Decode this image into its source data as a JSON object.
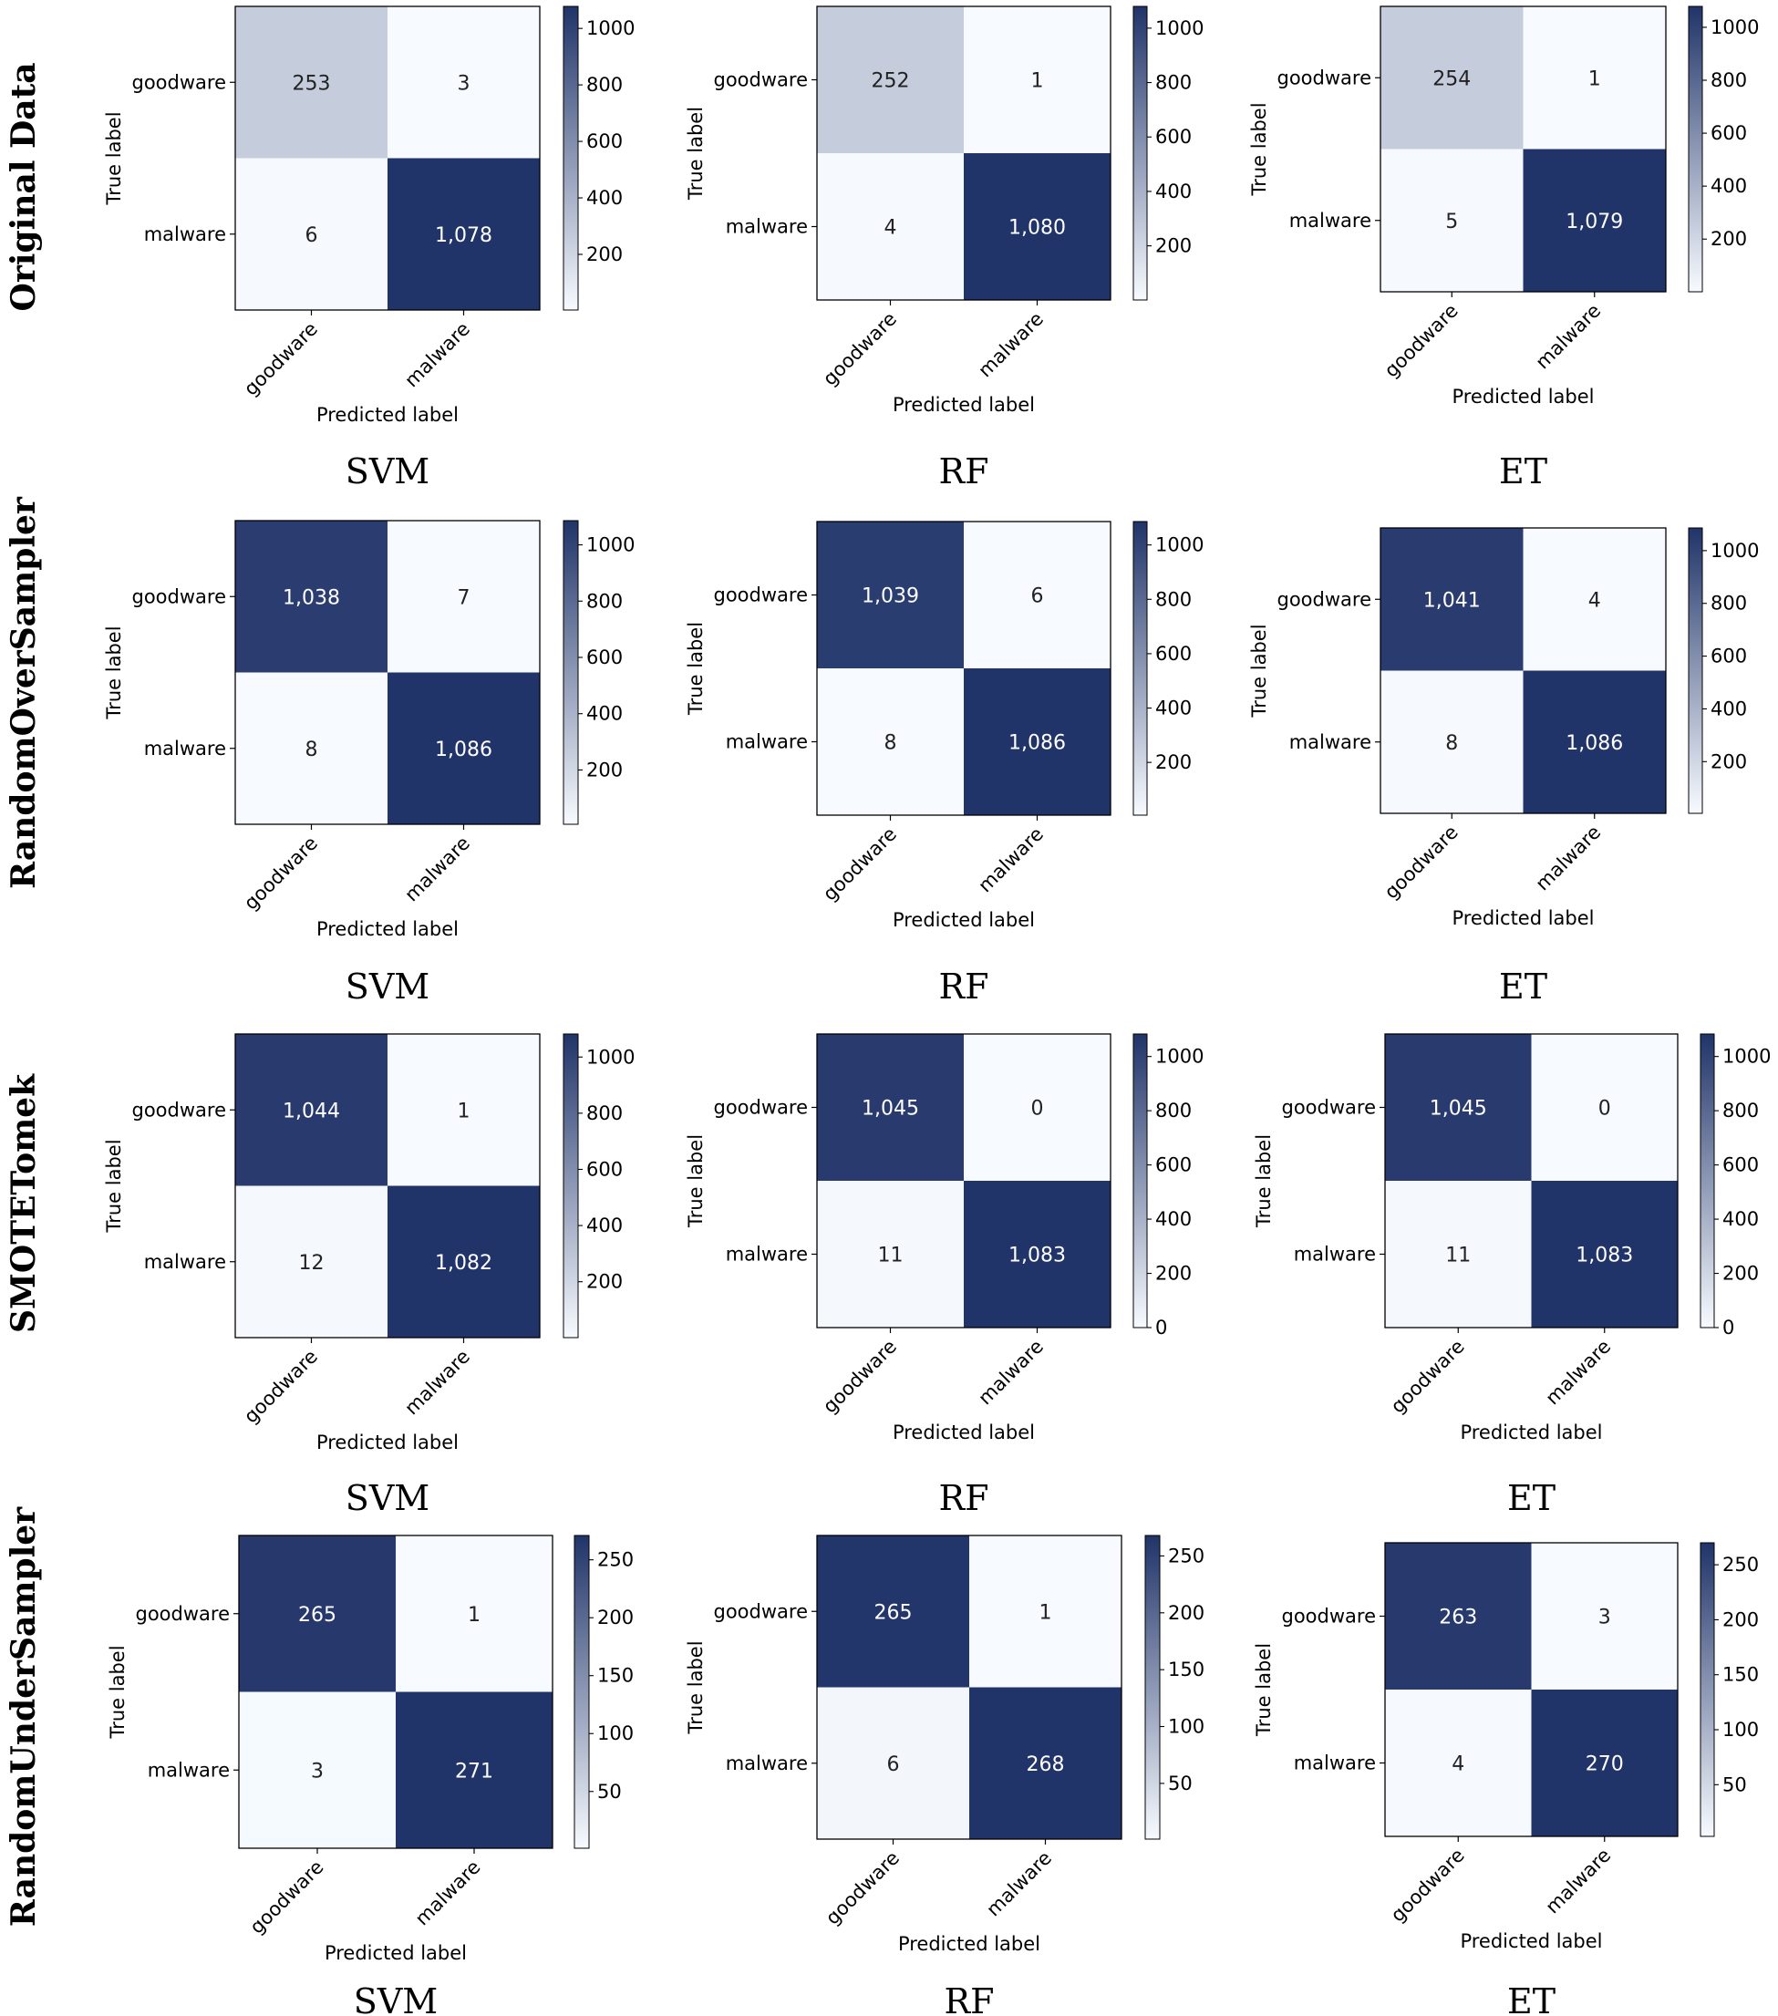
{
  "figure": {
    "row_labels": [
      "Original Data",
      "RandomOverSampler",
      "SMOTETomek",
      "RandomUnderSampler"
    ],
    "colors": {
      "low": "#f7fbff",
      "high": "#213469",
      "text_light": "#ffffff",
      "text_dark": "#222222"
    }
  },
  "chart_data": [
    {
      "type": "heatmap",
      "row_label": "Original Data",
      "title": "SVM",
      "xlabel": "Predicted label",
      "ylabel": "True label",
      "x_categories": [
        "goodware",
        "malware"
      ],
      "y_categories": [
        "goodware",
        "malware"
      ],
      "matrix": [
        [
          253,
          3
        ],
        [
          6,
          1078
        ]
      ],
      "cell_labels": [
        [
          "253",
          "3"
        ],
        [
          "6",
          "1,078"
        ]
      ],
      "colorbar": {
        "min": 3,
        "max": 1078,
        "ticks": [
          200,
          400,
          600,
          800,
          1000
        ]
      }
    },
    {
      "type": "heatmap",
      "row_label": "Original Data",
      "title": "RF",
      "xlabel": "Predicted label",
      "ylabel": "True label",
      "x_categories": [
        "goodware",
        "malware"
      ],
      "y_categories": [
        "goodware",
        "malware"
      ],
      "matrix": [
        [
          252,
          1
        ],
        [
          4,
          1080
        ]
      ],
      "cell_labels": [
        [
          "252",
          "1"
        ],
        [
          "4",
          "1,080"
        ]
      ],
      "colorbar": {
        "min": 1,
        "max": 1080,
        "ticks": [
          200,
          400,
          600,
          800,
          1000
        ]
      }
    },
    {
      "type": "heatmap",
      "row_label": "Original Data",
      "title": "ET",
      "xlabel": "Predicted label",
      "ylabel": "True label",
      "x_categories": [
        "goodware",
        "malware"
      ],
      "y_categories": [
        "goodware",
        "malware"
      ],
      "matrix": [
        [
          254,
          1
        ],
        [
          5,
          1079
        ]
      ],
      "cell_labels": [
        [
          "254",
          "1"
        ],
        [
          "5",
          "1,079"
        ]
      ],
      "colorbar": {
        "min": 1,
        "max": 1079,
        "ticks": [
          200,
          400,
          600,
          800,
          1000
        ]
      }
    },
    {
      "type": "heatmap",
      "row_label": "RandomOverSampler",
      "title": "SVM",
      "xlabel": "Predicted label",
      "ylabel": "True label",
      "x_categories": [
        "goodware",
        "malware"
      ],
      "y_categories": [
        "goodware",
        "malware"
      ],
      "matrix": [
        [
          1038,
          7
        ],
        [
          8,
          1086
        ]
      ],
      "cell_labels": [
        [
          "1,038",
          "7"
        ],
        [
          "8",
          "1,086"
        ]
      ],
      "colorbar": {
        "min": 7,
        "max": 1086,
        "ticks": [
          200,
          400,
          600,
          800,
          1000
        ]
      }
    },
    {
      "type": "heatmap",
      "row_label": "RandomOverSampler",
      "title": "RF",
      "xlabel": "Predicted label",
      "ylabel": "True label",
      "x_categories": [
        "goodware",
        "malware"
      ],
      "y_categories": [
        "goodware",
        "malware"
      ],
      "matrix": [
        [
          1039,
          6
        ],
        [
          8,
          1086
        ]
      ],
      "cell_labels": [
        [
          "1,039",
          "6"
        ],
        [
          "8",
          "1,086"
        ]
      ],
      "colorbar": {
        "min": 6,
        "max": 1086,
        "ticks": [
          200,
          400,
          600,
          800,
          1000
        ]
      }
    },
    {
      "type": "heatmap",
      "row_label": "RandomOverSampler",
      "title": "ET",
      "xlabel": "Predicted label",
      "ylabel": "True label",
      "x_categories": [
        "goodware",
        "malware"
      ],
      "y_categories": [
        "goodware",
        "malware"
      ],
      "matrix": [
        [
          1041,
          4
        ],
        [
          8,
          1086
        ]
      ],
      "cell_labels": [
        [
          "1,041",
          "4"
        ],
        [
          "8",
          "1,086"
        ]
      ],
      "colorbar": {
        "min": 4,
        "max": 1086,
        "ticks": [
          200,
          400,
          600,
          800,
          1000
        ]
      }
    },
    {
      "type": "heatmap",
      "row_label": "SMOTETomek",
      "title": "SVM",
      "xlabel": "Predicted label",
      "ylabel": "True label",
      "x_categories": [
        "goodware",
        "malware"
      ],
      "y_categories": [
        "goodware",
        "malware"
      ],
      "matrix": [
        [
          1044,
          1
        ],
        [
          12,
          1082
        ]
      ],
      "cell_labels": [
        [
          "1,044",
          "1"
        ],
        [
          "12",
          "1,082"
        ]
      ],
      "colorbar": {
        "min": 1,
        "max": 1082,
        "ticks": [
          200,
          400,
          600,
          800,
          1000
        ]
      }
    },
    {
      "type": "heatmap",
      "row_label": "SMOTETomek",
      "title": "RF",
      "xlabel": "Predicted label",
      "ylabel": "True label",
      "x_categories": [
        "goodware",
        "malware"
      ],
      "y_categories": [
        "goodware",
        "malware"
      ],
      "matrix": [
        [
          1045,
          0
        ],
        [
          11,
          1083
        ]
      ],
      "cell_labels": [
        [
          "1,045",
          "0"
        ],
        [
          "11",
          "1,083"
        ]
      ],
      "colorbar": {
        "min": 0,
        "max": 1083,
        "ticks": [
          0,
          200,
          400,
          600,
          800,
          1000
        ]
      }
    },
    {
      "type": "heatmap",
      "row_label": "SMOTETomek",
      "title": "ET",
      "xlabel": "Predicted label",
      "ylabel": "True label",
      "x_categories": [
        "goodware",
        "malware"
      ],
      "y_categories": [
        "goodware",
        "malware"
      ],
      "matrix": [
        [
          1045,
          0
        ],
        [
          11,
          1083
        ]
      ],
      "cell_labels": [
        [
          "1,045",
          "0"
        ],
        [
          "11",
          "1,083"
        ]
      ],
      "colorbar": {
        "min": 0,
        "max": 1083,
        "ticks": [
          0,
          200,
          400,
          600,
          800,
          1000
        ]
      }
    },
    {
      "type": "heatmap",
      "row_label": "RandomUnderSampler",
      "title": "SVM",
      "xlabel": "Predicted label",
      "ylabel": "True label",
      "x_categories": [
        "goodware",
        "malware"
      ],
      "y_categories": [
        "goodware",
        "malware"
      ],
      "matrix": [
        [
          265,
          1
        ],
        [
          3,
          271
        ]
      ],
      "cell_labels": [
        [
          "265",
          "1"
        ],
        [
          "3",
          "271"
        ]
      ],
      "colorbar": {
        "min": 1,
        "max": 271,
        "ticks": [
          50,
          100,
          150,
          200,
          250
        ]
      }
    },
    {
      "type": "heatmap",
      "row_label": "RandomUnderSampler",
      "title": "RF",
      "xlabel": "Predicted label",
      "ylabel": "True label",
      "x_categories": [
        "goodware",
        "malware"
      ],
      "y_categories": [
        "goodware",
        "malware"
      ],
      "matrix": [
        [
          265,
          1
        ],
        [
          6,
          268
        ]
      ],
      "cell_labels": [
        [
          "265",
          "1"
        ],
        [
          "6",
          "268"
        ]
      ],
      "colorbar": {
        "min": 1,
        "max": 268,
        "ticks": [
          50,
          100,
          150,
          200,
          250
        ]
      }
    },
    {
      "type": "heatmap",
      "row_label": "RandomUnderSampler",
      "title": "ET",
      "xlabel": "Predicted label",
      "ylabel": "True label",
      "x_categories": [
        "goodware",
        "malware"
      ],
      "y_categories": [
        "goodware",
        "malware"
      ],
      "matrix": [
        [
          263,
          3
        ],
        [
          4,
          270
        ]
      ],
      "cell_labels": [
        [
          "263",
          "3"
        ],
        [
          "4",
          "270"
        ]
      ],
      "colorbar": {
        "min": 3,
        "max": 270,
        "ticks": [
          50,
          100,
          150,
          200,
          250
        ]
      }
    }
  ]
}
